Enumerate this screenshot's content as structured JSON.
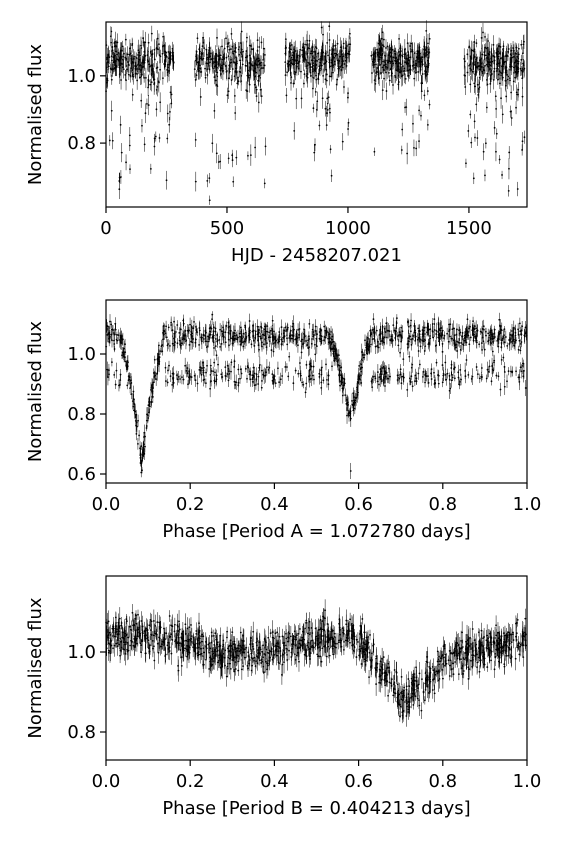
{
  "chart_data": [
    {
      "type": "scatter",
      "xlabel": "HJD - 2458207.021",
      "ylabel": "Normalised flux",
      "xlim": [
        0,
        1740
      ],
      "ylim": [
        0.61,
        1.16
      ],
      "xticks": [
        0,
        500,
        1000,
        1500
      ],
      "xtick_labels": [
        "0",
        "500",
        "1000",
        "1500"
      ],
      "yticks": [
        0.8,
        1.0
      ],
      "ytick_labels": [
        "0.8",
        "1.0"
      ],
      "grid": false,
      "marker": "small black points with vertical error bars",
      "segments": [
        {
          "x_start": 0,
          "x_end": 280,
          "baseline": 1.05,
          "dip_min": 0.66
        },
        {
          "x_start": 360,
          "x_end": 660,
          "baseline": 1.05,
          "dip_min": 0.62
        },
        {
          "x_start": 740,
          "x_end": 1010,
          "baseline": 1.05,
          "dip_min": 0.76
        },
        {
          "x_start": 1090,
          "x_end": 1340,
          "baseline": 1.05,
          "dip_min": 0.76
        },
        {
          "x_start": 1480,
          "x_end": 1730,
          "baseline": 1.04,
          "dip_min": 0.65
        }
      ]
    },
    {
      "type": "scatter",
      "xlabel": "Phase [Period A = 1.072780 days]",
      "ylabel": "Normalised flux",
      "xlim": [
        0,
        1
      ],
      "ylim": [
        0.57,
        1.18
      ],
      "xticks": [
        0,
        0.2,
        0.4,
        0.6,
        0.8,
        1.0
      ],
      "xtick_labels": [
        "0.0",
        "0.2",
        "0.4",
        "0.6",
        "0.8",
        "1.0"
      ],
      "yticks": [
        0.6,
        0.8,
        1.0
      ],
      "ytick_labels": [
        "0.6",
        "0.8",
        "1.0"
      ],
      "grid": false,
      "marker": "small black points with vertical error bars",
      "baseline": 1.06,
      "secondary_band": 0.93,
      "eclipses": [
        {
          "phase": 0.085,
          "min_flux": 0.64
        },
        {
          "phase": 0.58,
          "min_flux": 0.79
        }
      ]
    },
    {
      "type": "scatter",
      "xlabel": "Phase [Period B = 0.404213 days]",
      "ylabel": "Normalised flux",
      "xlim": [
        0,
        1
      ],
      "ylim": [
        0.73,
        1.19
      ],
      "xticks": [
        0,
        0.2,
        0.4,
        0.6,
        0.8,
        1.0
      ],
      "xtick_labels": [
        "0.0",
        "0.2",
        "0.4",
        "0.6",
        "0.8",
        "1.0"
      ],
      "yticks": [
        0.8,
        1.0
      ],
      "ytick_labels": [
        "0.8",
        "1.0"
      ],
      "grid": false,
      "marker": "small black points with vertical error bars",
      "baseline": 1.02,
      "dip": {
        "phase": 0.71,
        "min_flux": 0.88
      }
    }
  ]
}
